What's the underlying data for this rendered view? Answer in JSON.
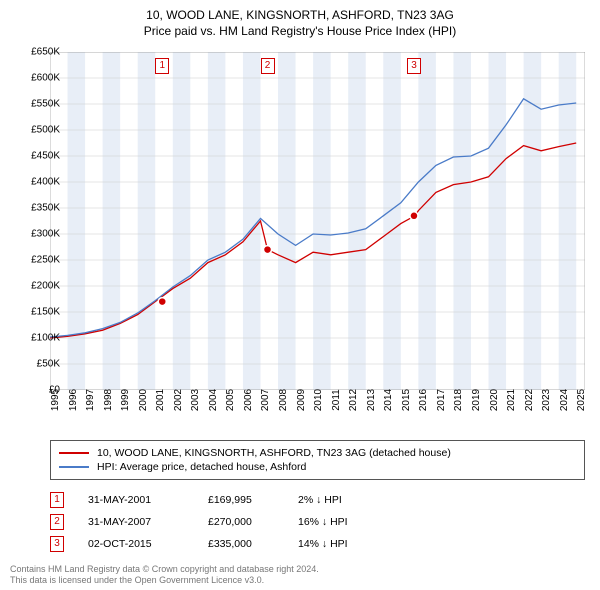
{
  "title": {
    "line1": "10, WOOD LANE, KINGSNORTH, ASHFORD, TN23 3AG",
    "line2": "Price paid vs. HM Land Registry's House Price Index (HPI)"
  },
  "chart": {
    "type": "line",
    "xlim": [
      1995,
      2025.5
    ],
    "ylim": [
      0,
      650000
    ],
    "ytick_step": 50000,
    "yticks": [
      "£0",
      "£50K",
      "£100K",
      "£150K",
      "£200K",
      "£250K",
      "£300K",
      "£350K",
      "£400K",
      "£450K",
      "£500K",
      "£550K",
      "£600K",
      "£650K"
    ],
    "xticks": [
      1995,
      1996,
      1997,
      1998,
      1999,
      2000,
      2001,
      2002,
      2003,
      2004,
      2005,
      2006,
      2007,
      2008,
      2009,
      2010,
      2011,
      2012,
      2013,
      2014,
      2015,
      2016,
      2017,
      2018,
      2019,
      2020,
      2021,
      2022,
      2023,
      2024,
      2025
    ],
    "background_color": "#ffffff",
    "band_color": "#e8eef7",
    "gridline_color": "#cccccc",
    "series": [
      {
        "name": "price_paid",
        "color": "#d00000",
        "line_width": 1.3,
        "points": [
          [
            1995,
            100000
          ],
          [
            1996,
            103000
          ],
          [
            1997,
            108000
          ],
          [
            1998,
            115000
          ],
          [
            1999,
            128000
          ],
          [
            2000,
            145000
          ],
          [
            2001,
            170000
          ],
          [
            2002,
            195000
          ],
          [
            2003,
            215000
          ],
          [
            2004,
            245000
          ],
          [
            2005,
            260000
          ],
          [
            2006,
            285000
          ],
          [
            2007,
            325000
          ],
          [
            2007.4,
            270000
          ],
          [
            2008,
            260000
          ],
          [
            2009,
            245000
          ],
          [
            2010,
            265000
          ],
          [
            2011,
            260000
          ],
          [
            2012,
            265000
          ],
          [
            2013,
            270000
          ],
          [
            2014,
            295000
          ],
          [
            2015,
            320000
          ],
          [
            2015.8,
            335000
          ],
          [
            2016,
            345000
          ],
          [
            2017,
            380000
          ],
          [
            2018,
            395000
          ],
          [
            2019,
            400000
          ],
          [
            2020,
            410000
          ],
          [
            2021,
            445000
          ],
          [
            2022,
            470000
          ],
          [
            2023,
            460000
          ],
          [
            2024,
            468000
          ],
          [
            2025,
            475000
          ]
        ]
      },
      {
        "name": "hpi",
        "color": "#4a7bc8",
        "line_width": 1.3,
        "points": [
          [
            1995,
            102000
          ],
          [
            1996,
            105000
          ],
          [
            1997,
            110000
          ],
          [
            1998,
            118000
          ],
          [
            1999,
            130000
          ],
          [
            2000,
            148000
          ],
          [
            2001,
            172000
          ],
          [
            2002,
            198000
          ],
          [
            2003,
            220000
          ],
          [
            2004,
            250000
          ],
          [
            2005,
            265000
          ],
          [
            2006,
            290000
          ],
          [
            2007,
            330000
          ],
          [
            2008,
            300000
          ],
          [
            2009,
            278000
          ],
          [
            2010,
            300000
          ],
          [
            2011,
            298000
          ],
          [
            2012,
            302000
          ],
          [
            2013,
            310000
          ],
          [
            2014,
            335000
          ],
          [
            2015,
            360000
          ],
          [
            2016,
            400000
          ],
          [
            2017,
            432000
          ],
          [
            2018,
            448000
          ],
          [
            2019,
            450000
          ],
          [
            2020,
            465000
          ],
          [
            2021,
            510000
          ],
          [
            2022,
            560000
          ],
          [
            2023,
            540000
          ],
          [
            2024,
            548000
          ],
          [
            2025,
            552000
          ]
        ]
      }
    ],
    "sale_markers": [
      {
        "label": "1",
        "year": 2001.4,
        "price": 169995
      },
      {
        "label": "2",
        "year": 2007.4,
        "price": 270000
      },
      {
        "label": "3",
        "year": 2015.75,
        "price": 335000
      }
    ],
    "marker_style": {
      "fill": "#d00000",
      "border": "#ffffff",
      "radius": 4
    }
  },
  "legend": {
    "items": [
      {
        "color": "#d00000",
        "label": "10, WOOD LANE, KINGSNORTH, ASHFORD, TN23 3AG (detached house)"
      },
      {
        "color": "#4a7bc8",
        "label": "HPI: Average price, detached house, Ashford"
      }
    ]
  },
  "sales": [
    {
      "marker": "1",
      "date": "31-MAY-2001",
      "price": "£169,995",
      "diff": "2% ↓ HPI"
    },
    {
      "marker": "2",
      "date": "31-MAY-2007",
      "price": "£270,000",
      "diff": "16% ↓ HPI"
    },
    {
      "marker": "3",
      "date": "02-OCT-2015",
      "price": "£335,000",
      "diff": "14% ↓ HPI"
    }
  ],
  "footer": {
    "line1": "Contains HM Land Registry data © Crown copyright and database right 2024.",
    "line2": "This data is licensed under the Open Government Licence v3.0."
  }
}
